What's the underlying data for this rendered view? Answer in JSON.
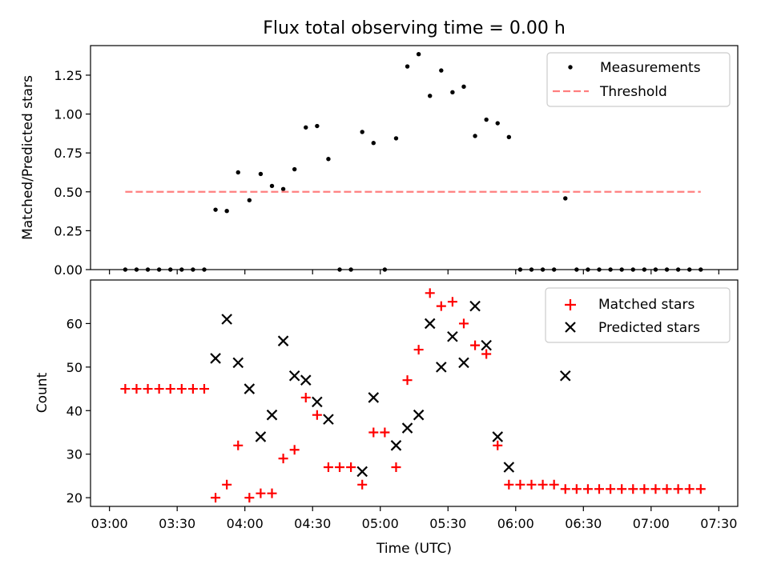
{
  "chart_data": [
    {
      "type": "scatter",
      "title": "Flux total observing time = 0.00 h",
      "ylabel": "Matched/Predicted stars",
      "xlabel": "",
      "xlim": [
        "03:00",
        "07:30"
      ],
      "ylim": [
        0,
        1.44
      ],
      "yticks": [
        "0.00",
        "0.25",
        "0.50",
        "0.75",
        "1.00",
        "1.25"
      ],
      "legend": "top-right",
      "grid": false,
      "series": [
        {
          "name": "Measurements",
          "kind": "dot",
          "color": "#000000",
          "points": [
            [
              "03:07",
              0
            ],
            [
              "03:12",
              0
            ],
            [
              "03:17",
              0
            ],
            [
              "03:22",
              0
            ],
            [
              "03:27",
              0
            ],
            [
              "03:32",
              0
            ],
            [
              "03:37",
              0
            ],
            [
              "03:42",
              0
            ],
            [
              "03:47",
              0.385
            ],
            [
              "03:52",
              0.377
            ],
            [
              "03:57",
              0.625
            ],
            [
              "04:02",
              0.446
            ],
            [
              "04:07",
              0.615
            ],
            [
              "04:12",
              0.538
            ],
            [
              "04:17",
              0.518
            ],
            [
              "04:22",
              0.645
            ],
            [
              "04:27",
              0.914
            ],
            [
              "04:32",
              0.923
            ],
            [
              "04:37",
              0.711
            ],
            [
              "04:42",
              0
            ],
            [
              "04:47",
              0
            ],
            [
              "04:52",
              0.885
            ],
            [
              "04:57",
              0.814
            ],
            [
              "05:02",
              0
            ],
            [
              "05:07",
              0.844
            ],
            [
              "05:12",
              1.306
            ],
            [
              "05:17",
              1.385
            ],
            [
              "05:22",
              1.117
            ],
            [
              "05:27",
              1.28
            ],
            [
              "05:32",
              1.14
            ],
            [
              "05:37",
              1.176
            ],
            [
              "05:42",
              0.859
            ],
            [
              "05:47",
              0.964
            ],
            [
              "05:52",
              0.941
            ],
            [
              "05:57",
              0.852
            ],
            [
              "06:02",
              0
            ],
            [
              "06:07",
              0
            ],
            [
              "06:12",
              0
            ],
            [
              "06:17",
              0
            ],
            [
              "06:22",
              0.458
            ],
            [
              "06:27",
              0
            ],
            [
              "06:32",
              0
            ],
            [
              "06:37",
              0
            ],
            [
              "06:42",
              0
            ],
            [
              "06:47",
              0
            ],
            [
              "06:52",
              0
            ],
            [
              "06:57",
              0
            ],
            [
              "07:02",
              0
            ],
            [
              "07:07",
              0
            ],
            [
              "07:12",
              0
            ],
            [
              "07:17",
              0
            ],
            [
              "07:22",
              0
            ]
          ]
        },
        {
          "name": "Threshold",
          "kind": "dashed-line",
          "color": "#ff7f7f",
          "points": [
            [
              "03:07",
              0.5
            ],
            [
              "07:22",
              0.5
            ]
          ]
        }
      ]
    },
    {
      "type": "scatter",
      "title": "",
      "ylabel": "Count",
      "xlabel": "Time (UTC)",
      "xlim": [
        "03:00",
        "07:30"
      ],
      "ylim": [
        18,
        70
      ],
      "yticks": [
        "20",
        "30",
        "40",
        "50",
        "60"
      ],
      "xticks": [
        "03:00",
        "03:30",
        "04:00",
        "04:30",
        "05:00",
        "05:30",
        "06:00",
        "06:30",
        "07:00",
        "07:30"
      ],
      "legend": "top-right",
      "grid": false,
      "series": [
        {
          "name": "Matched stars",
          "kind": "plus",
          "color": "#ff0000",
          "points": [
            [
              "03:07",
              45
            ],
            [
              "03:12",
              45
            ],
            [
              "03:17",
              45
            ],
            [
              "03:22",
              45
            ],
            [
              "03:27",
              45
            ],
            [
              "03:32",
              45
            ],
            [
              "03:37",
              45
            ],
            [
              "03:42",
              45
            ],
            [
              "03:47",
              20
            ],
            [
              "03:52",
              23
            ],
            [
              "03:57",
              32
            ],
            [
              "04:02",
              20
            ],
            [
              "04:07",
              21
            ],
            [
              "04:12",
              21
            ],
            [
              "04:17",
              29
            ],
            [
              "04:22",
              31
            ],
            [
              "04:27",
              43
            ],
            [
              "04:32",
              39
            ],
            [
              "04:37",
              27
            ],
            [
              "04:42",
              27
            ],
            [
              "04:47",
              27
            ],
            [
              "04:52",
              23
            ],
            [
              "04:57",
              35
            ],
            [
              "05:02",
              35
            ],
            [
              "05:07",
              27
            ],
            [
              "05:12",
              47
            ],
            [
              "05:17",
              54
            ],
            [
              "05:22",
              67
            ],
            [
              "05:27",
              64
            ],
            [
              "05:32",
              65
            ],
            [
              "05:37",
              60
            ],
            [
              "05:42",
              55
            ],
            [
              "05:47",
              53
            ],
            [
              "05:52",
              32
            ],
            [
              "05:57",
              23
            ],
            [
              "06:02",
              23
            ],
            [
              "06:07",
              23
            ],
            [
              "06:12",
              23
            ],
            [
              "06:17",
              23
            ],
            [
              "06:22",
              22
            ],
            [
              "06:27",
              22
            ],
            [
              "06:32",
              22
            ],
            [
              "06:37",
              22
            ],
            [
              "06:42",
              22
            ],
            [
              "06:47",
              22
            ],
            [
              "06:52",
              22
            ],
            [
              "06:57",
              22
            ],
            [
              "07:02",
              22
            ],
            [
              "07:07",
              22
            ],
            [
              "07:12",
              22
            ],
            [
              "07:17",
              22
            ],
            [
              "07:22",
              22
            ]
          ]
        },
        {
          "name": "Predicted stars",
          "kind": "cross",
          "color": "#000000",
          "points": [
            [
              "03:47",
              52
            ],
            [
              "03:52",
              61
            ],
            [
              "03:57",
              51
            ],
            [
              "04:02",
              45
            ],
            [
              "04:07",
              34
            ],
            [
              "04:12",
              39
            ],
            [
              "04:17",
              56
            ],
            [
              "04:22",
              48
            ],
            [
              "04:27",
              47
            ],
            [
              "04:32",
              42
            ],
            [
              "04:37",
              38
            ],
            [
              "04:52",
              26
            ],
            [
              "04:57",
              43
            ],
            [
              "05:07",
              32
            ],
            [
              "05:12",
              36
            ],
            [
              "05:17",
              39
            ],
            [
              "05:22",
              60
            ],
            [
              "05:27",
              50
            ],
            [
              "05:32",
              57
            ],
            [
              "05:37",
              51
            ],
            [
              "05:42",
              64
            ],
            [
              "05:47",
              55
            ],
            [
              "05:52",
              34
            ],
            [
              "05:57",
              27
            ],
            [
              "06:22",
              48
            ]
          ]
        }
      ]
    }
  ]
}
